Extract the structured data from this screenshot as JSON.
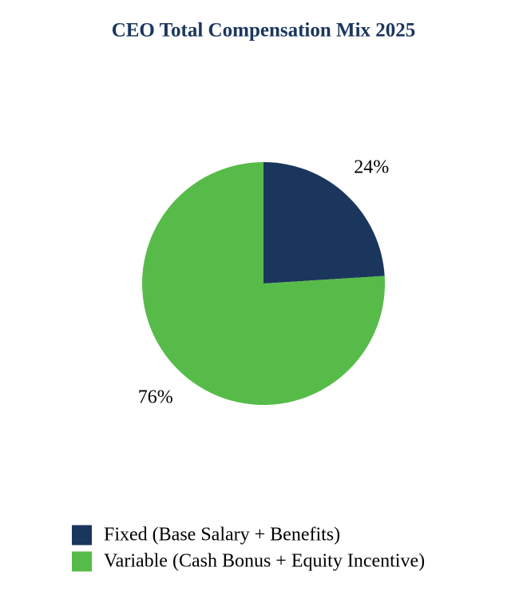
{
  "chart_data": {
    "type": "pie",
    "title": "CEO Total Compensation Mix 2025",
    "categories": [
      "Fixed (Base Salary + Benefits)",
      "Variable (Cash Bonus + Equity Incentive)"
    ],
    "values": [
      24,
      76
    ],
    "value_labels": [
      "24%",
      "76%"
    ],
    "colors": [
      "#1b365d",
      "#57bb4a"
    ],
    "legend": "bottom"
  }
}
